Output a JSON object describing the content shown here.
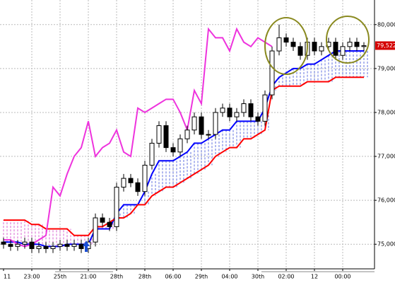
{
  "chart_data": {
    "type": "candlestick",
    "categories": [
      "11",
      null,
      null,
      null,
      "23:00",
      null,
      null,
      null,
      "25th",
      null,
      null,
      null,
      "21:00",
      null,
      null,
      null,
      "28th",
      null,
      null,
      null,
      "28th",
      null,
      null,
      null,
      "06:00",
      null,
      null,
      null,
      "29th",
      null,
      null,
      null,
      "04:00",
      null,
      null,
      null,
      "30th",
      null,
      null,
      null,
      "02:00",
      null,
      null,
      null,
      "12",
      null,
      null,
      null,
      "00:00",
      null,
      null,
      null
    ],
    "open": [
      75.05,
      75.0,
      74.95,
      75.0,
      75.05,
      74.9,
      74.95,
      74.9,
      74.95,
      75.0,
      74.95,
      75.0,
      74.9,
      75.05,
      75.6,
      75.5,
      75.4,
      76.3,
      76.5,
      76.4,
      76.2,
      76.8,
      77.3,
      77.7,
      77.2,
      77.1,
      77.4,
      77.6,
      77.9,
      77.5,
      77.5,
      78.0,
      78.1,
      77.9,
      78.0,
      78.2,
      77.9,
      77.8,
      78.4,
      79.4,
      79.7,
      79.6,
      79.5,
      79.3,
      79.6,
      79.4,
      79.5,
      79.6,
      79.3,
      79.5,
      79.6,
      79.5
    ],
    "high": [
      75.15,
      75.1,
      75.1,
      75.15,
      75.15,
      75.05,
      75.05,
      75.05,
      75.1,
      75.1,
      75.1,
      75.1,
      75.15,
      75.7,
      75.7,
      75.6,
      76.4,
      76.6,
      76.6,
      76.5,
      76.9,
      77.4,
      77.8,
      77.8,
      77.3,
      77.5,
      77.7,
      78.0,
      78.0,
      77.6,
      78.1,
      78.2,
      78.2,
      78.1,
      78.3,
      78.3,
      78.0,
      78.5,
      79.5,
      80.0,
      79.8,
      79.7,
      79.6,
      79.7,
      79.7,
      79.6,
      79.7,
      79.7,
      79.6,
      79.7,
      79.7,
      79.6
    ],
    "low": [
      74.9,
      74.85,
      74.85,
      74.9,
      74.8,
      74.8,
      74.8,
      74.8,
      74.85,
      74.85,
      74.85,
      74.8,
      74.8,
      74.95,
      75.4,
      75.3,
      75.3,
      76.2,
      76.3,
      76.1,
      76.1,
      76.7,
      77.2,
      77.1,
      77.0,
      77.0,
      77.3,
      77.5,
      77.4,
      77.4,
      77.4,
      77.9,
      77.8,
      77.8,
      77.9,
      77.8,
      77.7,
      77.7,
      78.3,
      79.3,
      79.5,
      79.4,
      79.2,
      79.2,
      79.3,
      79.3,
      79.4,
      79.2,
      79.2,
      79.4,
      79.4,
      79.4
    ],
    "close": [
      75.0,
      74.95,
      75.0,
      75.05,
      74.9,
      74.95,
      74.9,
      74.95,
      75.0,
      74.95,
      75.0,
      74.9,
      75.05,
      75.6,
      75.5,
      75.4,
      76.3,
      76.5,
      76.4,
      76.2,
      76.8,
      77.3,
      77.7,
      77.2,
      77.1,
      77.4,
      77.6,
      77.9,
      77.5,
      77.5,
      78.0,
      78.1,
      77.9,
      78.0,
      78.2,
      77.9,
      77.8,
      78.4,
      79.4,
      79.7,
      79.6,
      79.5,
      79.3,
      79.6,
      79.4,
      79.5,
      79.6,
      79.3,
      79.5,
      79.6,
      79.5,
      79.52
    ],
    "series": [
      {
        "color": "#0000ff",
        "values": [
          75.05,
          75.05,
          75.05,
          75.0,
          75.0,
          75.0,
          74.95,
          74.95,
          74.95,
          75.0,
          75.0,
          75.0,
          75.0,
          75.35,
          75.35,
          75.35,
          75.7,
          75.9,
          75.9,
          75.9,
          76.2,
          76.6,
          76.9,
          76.9,
          76.9,
          77.0,
          77.1,
          77.3,
          77.3,
          77.4,
          77.5,
          77.6,
          77.6,
          77.8,
          77.8,
          77.8,
          77.8,
          78.1,
          78.6,
          78.8,
          78.9,
          79.0,
          79.0,
          79.1,
          79.1,
          79.2,
          79.3,
          79.4,
          79.4,
          79.4,
          79.4,
          79.4
        ]
      },
      {
        "color": "#ff0000",
        "values": [
          75.55,
          75.55,
          75.55,
          75.55,
          75.45,
          75.45,
          75.35,
          75.35,
          75.35,
          75.35,
          75.2,
          75.2,
          75.2,
          75.4,
          75.4,
          75.5,
          75.6,
          75.6,
          75.7,
          75.9,
          75.9,
          76.1,
          76.2,
          76.3,
          76.3,
          76.4,
          76.5,
          76.6,
          76.7,
          76.8,
          77.0,
          77.1,
          77.2,
          77.2,
          77.4,
          77.4,
          77.5,
          77.6,
          78.5,
          78.6,
          78.6,
          78.6,
          78.6,
          78.7,
          78.7,
          78.7,
          78.7,
          78.8,
          78.8,
          78.8,
          78.8,
          78.8
        ]
      },
      {
        "color": "#ee33dd",
        "values": [
          75.1,
          75.1,
          75.0,
          74.95,
          75.0,
          75.1,
          75.2,
          76.3,
          76.1,
          76.6,
          77.0,
          77.2,
          77.8,
          77.0,
          77.2,
          77.3,
          77.6,
          77.1,
          77.0,
          78.1,
          78.0,
          78.1,
          78.2,
          78.3,
          78.3,
          78.0,
          77.6,
          78.5,
          78.2,
          79.9,
          79.7,
          79.7,
          79.4,
          79.9,
          79.6,
          79.5,
          79.7,
          79.6,
          79.5,
          null,
          null,
          null,
          null,
          null,
          null,
          null,
          null,
          null,
          null,
          null,
          null,
          null
        ]
      }
    ],
    "last_price": {
      "value": 79.522,
      "label": "79,522"
    },
    "ylim": [
      74.44,
      80.56
    ],
    "yticks": [
      {
        "value": 75,
        "label": "75,000"
      },
      {
        "value": 76,
        "label": "76,000"
      },
      {
        "value": 77,
        "label": "77,000"
      },
      {
        "value": 78,
        "label": "78,000"
      },
      {
        "value": 79,
        "label": "79,000"
      },
      {
        "value": 80,
        "label": "80,000"
      }
    ],
    "grid": true
  }
}
